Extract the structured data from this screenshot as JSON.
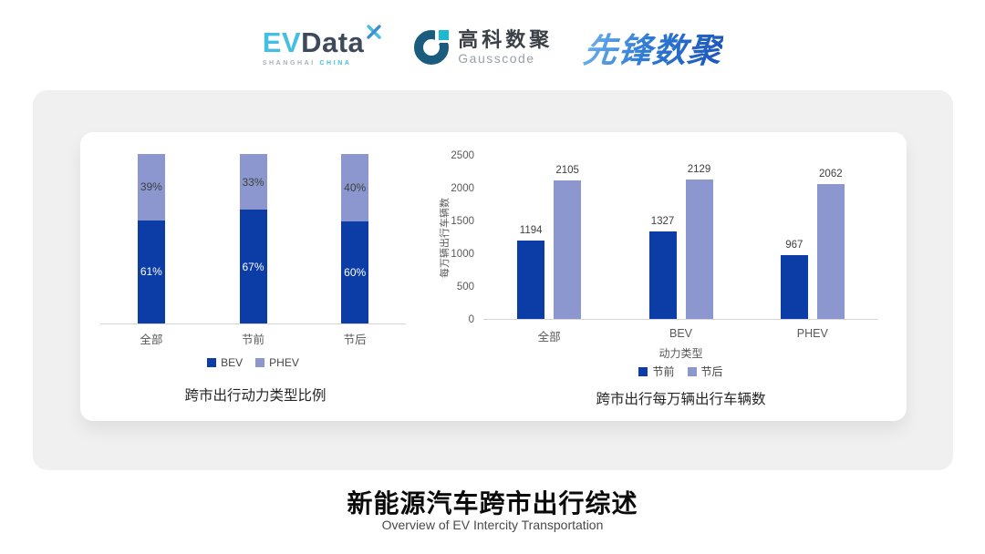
{
  "header": {
    "evdata_logo": {
      "ev": "EV",
      "data": "Data",
      "tagline_left": "SHANGHAI",
      "tagline_right": "CHINA"
    },
    "gausscode_logo": {
      "name_cn": "高科数聚",
      "name_en": "Gausscode"
    },
    "pioneer_logo": {
      "name_cn": "先锋数聚"
    }
  },
  "colors": {
    "bar_dark_blue": "#0C3DA6",
    "bar_light_blue": "#8B97CE",
    "card_bg": "#F0F0F0",
    "axis_line": "#D6D6D6",
    "tick_text": "#595959",
    "label_on_light": "#3F3F3F",
    "label_on_dark": "#FFFFFF"
  },
  "chart_data": [
    {
      "type": "bar",
      "subtype": "stacked_percent",
      "title": "跨市出行动力类型比例",
      "categories": [
        "全部",
        "节前",
        "节后"
      ],
      "series": [
        {
          "name": "BEV",
          "color": "#0C3DA6",
          "values": [
            61,
            67,
            60
          ],
          "labels": [
            "61%",
            "67%",
            "60%"
          ]
        },
        {
          "name": "PHEV",
          "color": "#8B97CE",
          "values": [
            39,
            33,
            40
          ],
          "labels": [
            "39%",
            "33%",
            "40%"
          ]
        }
      ],
      "ylim": [
        0,
        100
      ],
      "grid": false,
      "legend_position": "bottom"
    },
    {
      "type": "bar",
      "subtype": "grouped",
      "title": "跨市出行每万辆出行车辆数",
      "categories": [
        "全部",
        "BEV",
        "PHEV"
      ],
      "xlabel": "动力类型",
      "ylabel": "每万辆出行车辆数",
      "ylim": [
        0,
        2500
      ],
      "yticks": [
        0,
        500,
        1000,
        1500,
        2000,
        2500
      ],
      "series": [
        {
          "name": "节前",
          "color": "#0C3DA6",
          "values": [
            1194,
            1327,
            967
          ]
        },
        {
          "name": "节后",
          "color": "#8B97CE",
          "values": [
            2105,
            2129,
            2062
          ]
        }
      ],
      "grid": false,
      "legend_position": "bottom"
    }
  ],
  "footer": {
    "title": "新能源汽车跨市出行综述",
    "subtitle": "Overview of EV Intercity Transportation"
  }
}
